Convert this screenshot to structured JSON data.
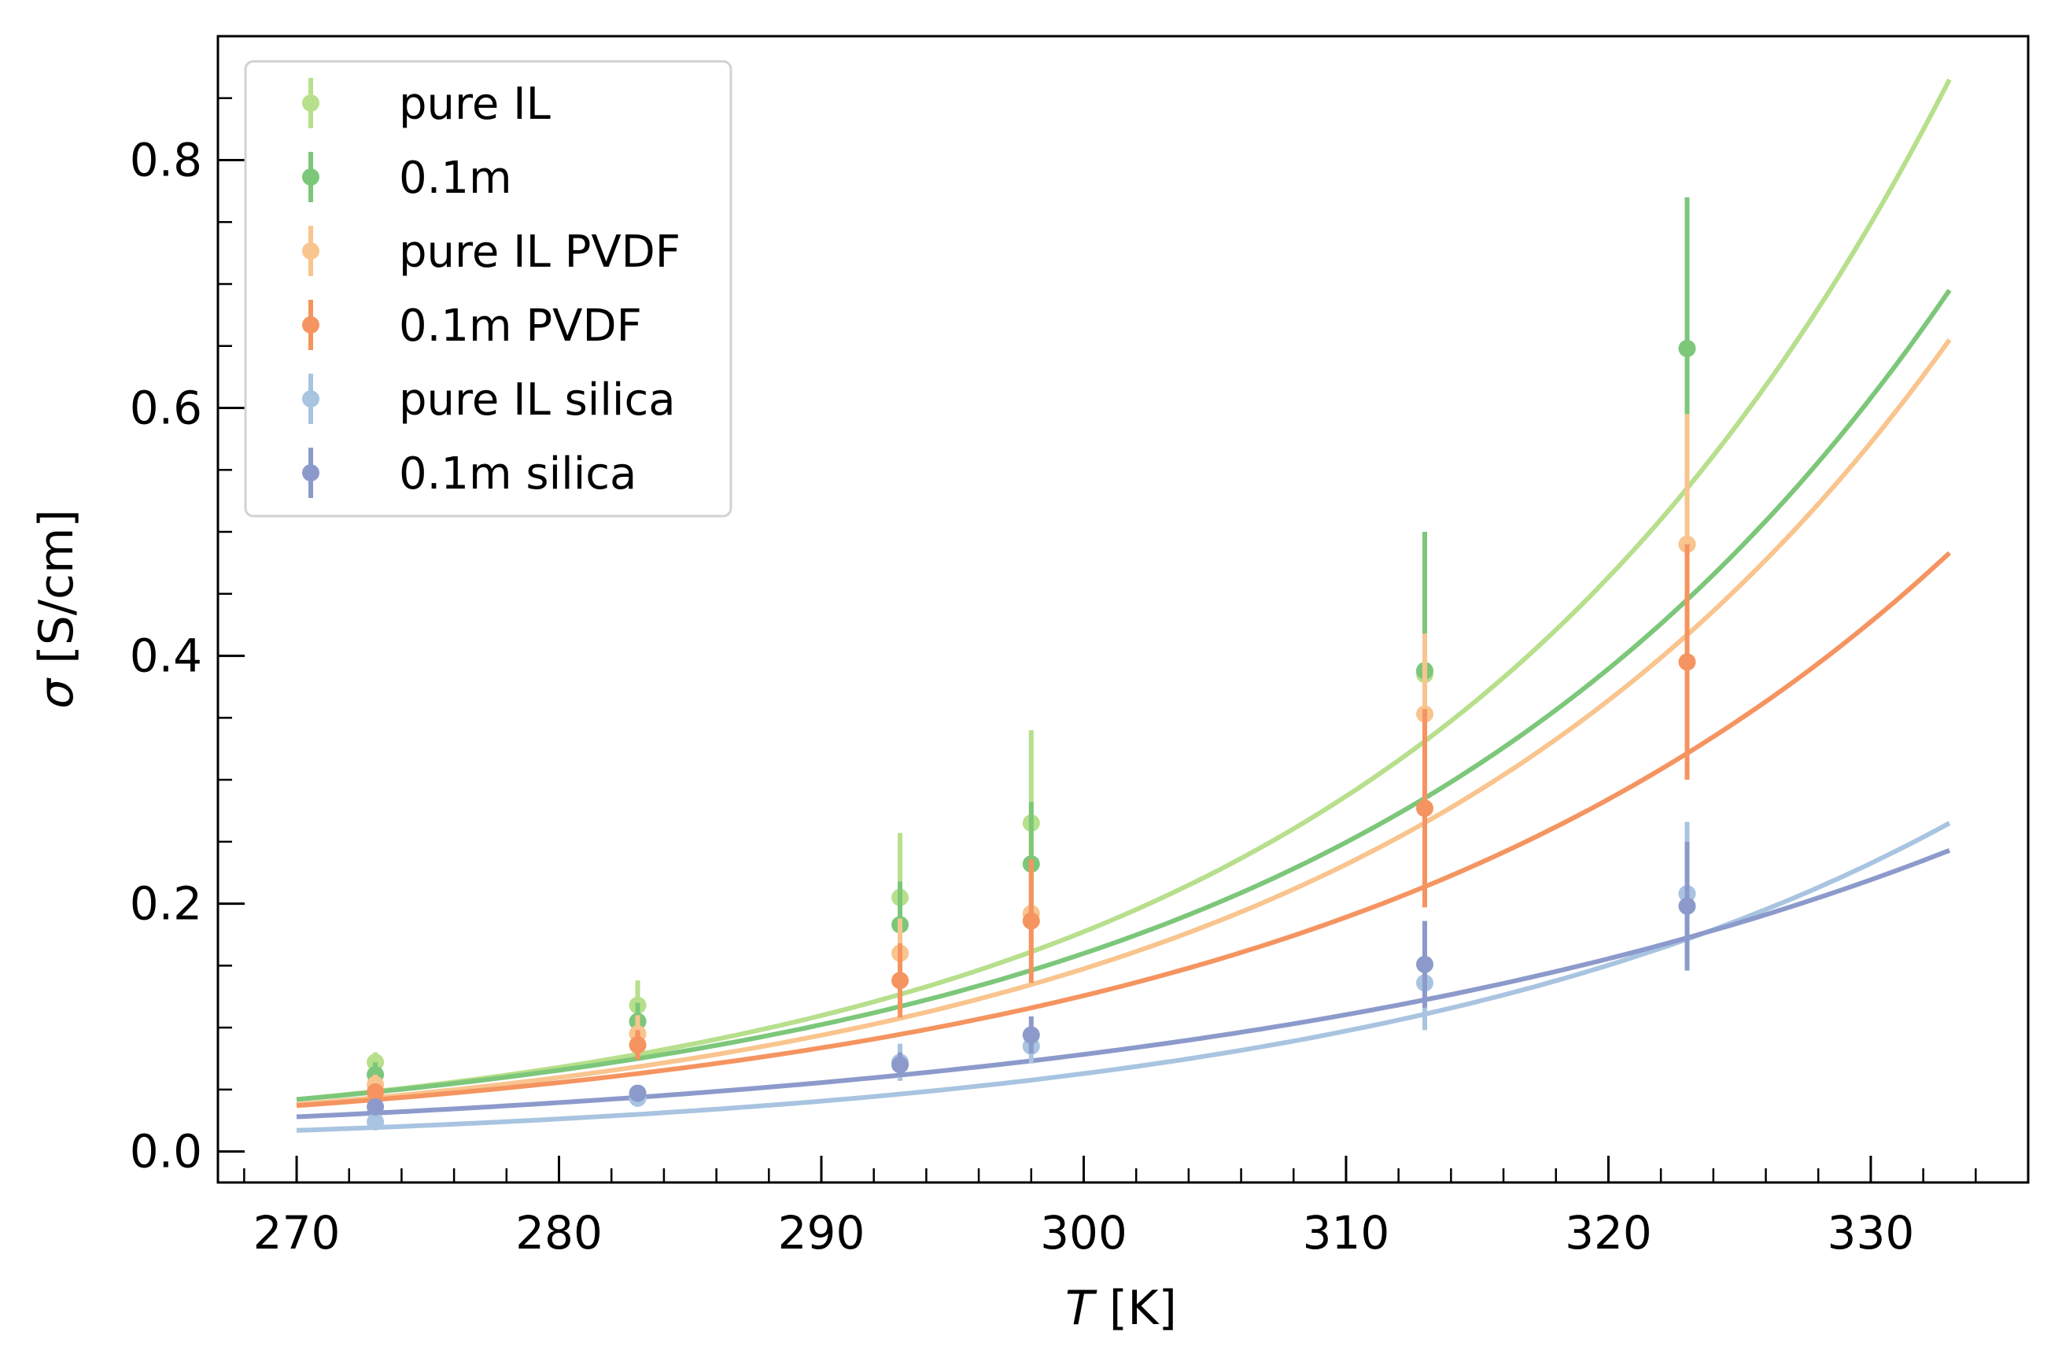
{
  "chart_data": {
    "type": "scatter",
    "title": "",
    "xlabel_italic": "T",
    "xlabel_unit": "[K]",
    "ylabel_symbol": "σ",
    "ylabel_unit": "[S/cm]",
    "xlim": [
      267,
      336
    ],
    "ylim": [
      -0.025,
      0.9
    ],
    "x_ticks": [
      270,
      280,
      290,
      300,
      310,
      320,
      330
    ],
    "x_tick_labels": [
      "270",
      "280",
      "290",
      "300",
      "310",
      "320",
      "330"
    ],
    "y_ticks": [
      0.0,
      0.2,
      0.4,
      0.6,
      0.8
    ],
    "y_tick_labels": [
      "0.0",
      "0.2",
      "0.4",
      "0.6",
      "0.8"
    ],
    "legend_position": "upper-left",
    "grid": false,
    "fit_x_range": [
      270,
      333
    ],
    "series": [
      {
        "name": "pure IL",
        "color": "#b7df8c",
        "x": [
          273,
          283,
          293,
          298,
          313,
          323
        ],
        "y": [
          0.072,
          0.118,
          0.205,
          0.265,
          0.385,
          0.49
        ],
        "yerr": [
          0.008,
          0.02,
          0.052,
          0.075,
          0.045,
          0.06
        ],
        "fit_y": [
          0.042,
          0.865
        ]
      },
      {
        "name": "0.1m",
        "color": "#7cc77a",
        "x": [
          273,
          283,
          293,
          298,
          313,
          323
        ],
        "y": [
          0.062,
          0.105,
          0.183,
          0.232,
          0.388,
          0.648
        ],
        "yerr": [
          0.01,
          0.015,
          0.035,
          0.05,
          0.112,
          0.122
        ],
        "fit_y": [
          0.042,
          0.695
        ]
      },
      {
        "name": "pure IL PVDF",
        "color": "#f9c48e",
        "x": [
          273,
          283,
          293,
          298,
          313,
          323
        ],
        "y": [
          0.054,
          0.095,
          0.16,
          0.192,
          0.353,
          0.49
        ],
        "yerr": [
          0.008,
          0.015,
          0.028,
          0.035,
          0.065,
          0.105
        ],
        "fit_y": [
          0.038,
          0.655
        ]
      },
      {
        "name": "0.1m PVDF",
        "color": "#f59460",
        "x": [
          273,
          283,
          293,
          298,
          313,
          323
        ],
        "y": [
          0.048,
          0.086,
          0.138,
          0.186,
          0.277,
          0.395
        ],
        "yerr": [
          0.007,
          0.012,
          0.03,
          0.05,
          0.08,
          0.095
        ],
        "fit_y": [
          0.037,
          0.483
        ]
      },
      {
        "name": "pure IL silica",
        "color": "#a8c4e0",
        "x": [
          273,
          283,
          293,
          298,
          313,
          323
        ],
        "y": [
          0.024,
          0.043,
          0.072,
          0.085,
          0.136,
          0.208
        ],
        "yerr": [
          0.004,
          0.006,
          0.015,
          0.014,
          0.038,
          0.058
        ],
        "fit_y": [
          0.017,
          0.265
        ]
      },
      {
        "name": "0.1m silica",
        "color": "#8c9acb",
        "x": [
          273,
          283,
          293,
          298,
          313,
          323
        ],
        "y": [
          0.036,
          0.047,
          0.07,
          0.094,
          0.151,
          0.198
        ],
        "yerr": [
          0.006,
          0.006,
          0.01,
          0.015,
          0.035,
          0.052
        ],
        "fit_y": [
          0.028,
          0.243
        ]
      }
    ]
  }
}
